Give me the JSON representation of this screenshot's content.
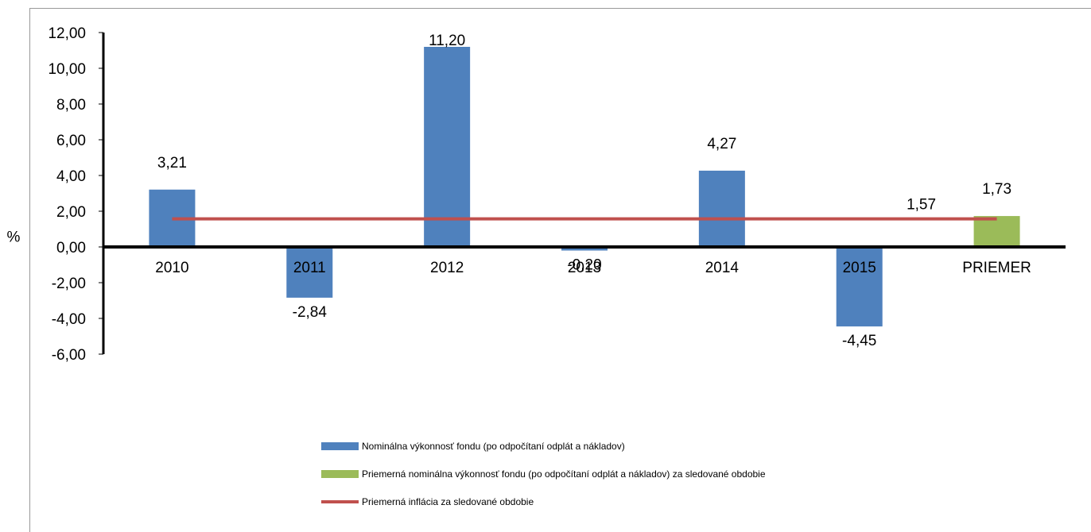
{
  "chart_data": {
    "type": "bar",
    "categories": [
      "2010",
      "2011",
      "2012",
      "2013",
      "2014",
      "2015",
      "PRIEMER"
    ],
    "series": [
      {
        "name": "Nominálna výkonnosť fondu (po odpočítaní odplát a nákladov)",
        "color": "#4f81bd",
        "values": [
          3.21,
          -2.84,
          11.2,
          -0.2,
          4.27,
          -4.45,
          null
        ],
        "labels": [
          "3,21",
          "-2,84",
          "11,20",
          "-0,20",
          "4,27",
          "-4,45",
          null
        ]
      },
      {
        "name": "Priemerná nominálna výkonnosť fondu (po odpočítaní odplát a nákladov) za sledované obdobie",
        "color": "#9bbb59",
        "values": [
          null,
          null,
          null,
          null,
          null,
          null,
          1.73
        ],
        "labels": [
          null,
          null,
          null,
          null,
          null,
          null,
          "1,73"
        ]
      },
      {
        "name": "Priemerná inflácia za sledované obdobie",
        "type": "line",
        "color": "#c0504d",
        "value": 1.57,
        "label": "1,57"
      }
    ],
    "ylabel": "%",
    "ylim": [
      -6,
      12
    ],
    "yticks": [
      12,
      10,
      8,
      6,
      4,
      2,
      0,
      -2,
      -4,
      -6
    ],
    "ytick_labels": [
      "12,00",
      "10,00",
      "8,00",
      "6,00",
      "4,00",
      "2,00",
      "0,00",
      "-2,00",
      "-4,00",
      "-6,00"
    ],
    "grid": false,
    "legend": "bottom"
  }
}
